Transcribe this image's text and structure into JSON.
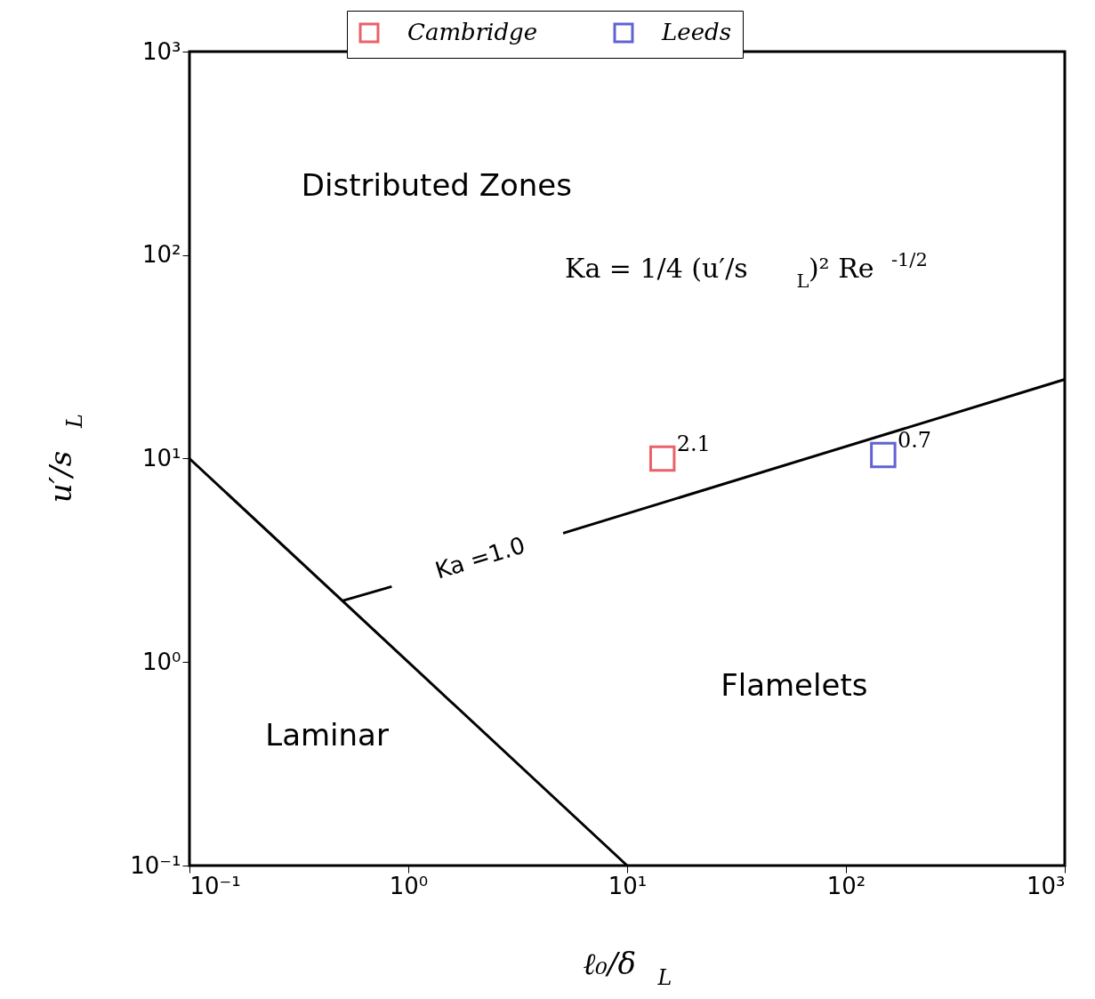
{
  "chart_data": {
    "type": "scatter",
    "xlabel": "ℓ₀/δ$_{L}$",
    "ylabel": "u′/s$_{L}$",
    "log": "xy",
    "grid": false,
    "legend": "top",
    "marker": "square",
    "xlim": [
      0.1,
      1000
    ],
    "ylim": [
      0.1,
      1000
    ],
    "xticks": [
      {
        "value": 0.1,
        "label": "10⁻¹"
      },
      {
        "value": 1,
        "label": "10⁰"
      },
      {
        "value": 10,
        "label": "10¹"
      },
      {
        "value": 100,
        "label": "10²"
      },
      {
        "value": 1000,
        "label": "10³"
      }
    ],
    "yticks": [
      {
        "value": 0.1,
        "label": "10⁻¹"
      },
      {
        "value": 1,
        "label": "10⁰"
      },
      {
        "value": 10,
        "label": "10¹"
      },
      {
        "value": 100,
        "label": "10²"
      },
      {
        "value": 1000,
        "label": "10³"
      }
    ],
    "series": [
      {
        "name": "Cambridge",
        "color": "#e0202a",
        "x": [
          14.5
        ],
        "values": [
          10
        ]
      },
      {
        "name": "Leeds",
        "color": "#2020c0",
        "x": [
          148
        ],
        "values": [
          10.4
        ]
      },
      {
        "type": "line",
        "color": "#000000",
        "marker": "none",
        "x": [
          0.1,
          10
        ],
        "values": [
          10,
          0.1
        ]
      },
      {
        "type": "line",
        "color": "#000000",
        "marker": "none",
        "x": [
          0.5,
          0.84,
          2,
          5.1,
          1000
        ],
        "values": [
          2,
          2.35,
          null,
          4.3,
          24.5
        ]
      }
    ],
    "annotations": [
      {
        "text": "2.1",
        "x": 14.5,
        "y": 10
      },
      {
        "text": "0.7",
        "x": 148,
        "y": 10.4
      },
      "Ka =1.0",
      "Distributed Zones",
      "Ka = 1/4 (u′/s$_{L}$)² Re$^{-1/2}$",
      "Flamelets",
      "Laminar"
    ]
  }
}
